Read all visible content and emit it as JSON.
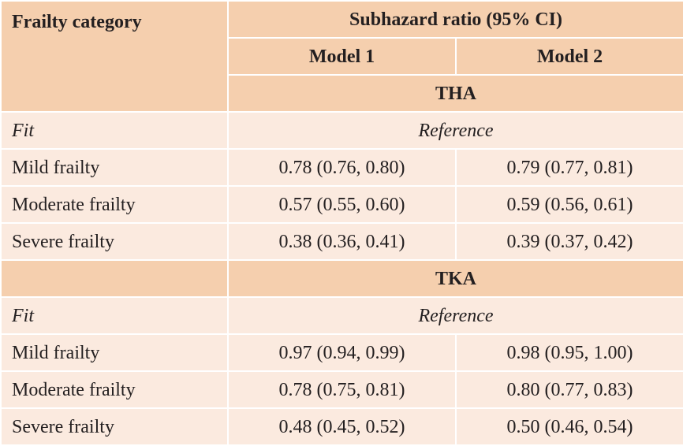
{
  "header": {
    "col1": "Frailty category",
    "span": "Subhazard ratio (95% CI)",
    "model1": "Model 1",
    "model2": "Model 2"
  },
  "sections": [
    {
      "title": "THA",
      "reference_label": "Fit",
      "reference_value": "Reference",
      "rows": [
        {
          "category": "Mild frailty",
          "model1": "0.78 (0.76, 0.80)",
          "model2": "0.79 (0.77, 0.81)"
        },
        {
          "category": "Moderate frailty",
          "model1": "0.57 (0.55, 0.60)",
          "model2": "0.59 (0.56, 0.61)"
        },
        {
          "category": "Severe frailty",
          "model1": "0.38 (0.36, 0.41)",
          "model2": "0.39 (0.37, 0.42)"
        }
      ]
    },
    {
      "title": "TKA",
      "reference_label": "Fit",
      "reference_value": "Reference",
      "rows": [
        {
          "category": "Mild frailty",
          "model1": "0.97 (0.94, 0.99)",
          "model2": "0.98 (0.95, 1.00)"
        },
        {
          "category": "Moderate frailty",
          "model1": "0.78 (0.75, 0.81)",
          "model2": "0.80 (0.77, 0.83)"
        },
        {
          "category": "Severe frailty",
          "model1": "0.48 (0.45, 0.52)",
          "model2": "0.50 (0.46, 0.54)"
        }
      ]
    }
  ]
}
